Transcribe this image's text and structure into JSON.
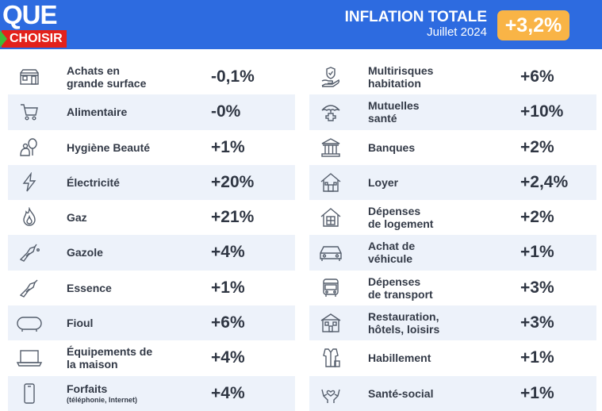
{
  "brand": {
    "line1": "QUE",
    "line2": "CHOISIR"
  },
  "header": {
    "title": "INFLATION TOTALE",
    "period": "Juillet 2024",
    "total": "+3,2%"
  },
  "colors": {
    "header_bg": "#2d6be0",
    "badge_bg": "#f9b446",
    "row_alt": "#edf2fa",
    "logo_red": "#e3211b",
    "logo_green": "#3dbb3a"
  },
  "left_items": [
    {
      "icon": "store-icon",
      "label_1": "Achats en",
      "label_2": "grande surface",
      "value": "-0,1%"
    },
    {
      "icon": "cart-icon",
      "label_1": "Alimentaire",
      "value": "-0%"
    },
    {
      "icon": "beauty-icon",
      "label_1": "Hygiène Beauté",
      "value": "+1%"
    },
    {
      "icon": "lightning-icon",
      "label_1": "Électricité",
      "value": "+20%"
    },
    {
      "icon": "flame-icon",
      "label_1": "Gaz",
      "value": "+21%"
    },
    {
      "icon": "diesel-nozzle-icon",
      "label_1": "Gazole",
      "value": "+4%"
    },
    {
      "icon": "fuel-nozzle-icon",
      "label_1": "Essence",
      "value": "+1%"
    },
    {
      "icon": "oil-tank-icon",
      "label_1": "Fioul",
      "value": "+6%"
    },
    {
      "icon": "laptop-icon",
      "label_1": "Équipements de",
      "label_2": "la maison",
      "value": "+4%"
    },
    {
      "icon": "phone-icon",
      "label_1": "Forfaits",
      "label_small": "(téléphonie, Internet)",
      "value": "+4%"
    }
  ],
  "right_items": [
    {
      "icon": "home-insurance-icon",
      "label_1": "Multirisques",
      "label_2": "habitation",
      "value": "+6%"
    },
    {
      "icon": "health-umbrella-icon",
      "label_1": "Mutuelles",
      "label_2": "santé",
      "value": "+10%"
    },
    {
      "icon": "bank-icon",
      "label_1": "Banques",
      "value": "+2%"
    },
    {
      "icon": "house-icon",
      "label_1": "Loyer",
      "value": "+2,4%"
    },
    {
      "icon": "house-calculator-icon",
      "label_1": "Dépenses",
      "label_2": "de logement",
      "value": "+2%"
    },
    {
      "icon": "car-icon",
      "label_1": "Achat de",
      "label_2": "véhicule",
      "value": "+1%"
    },
    {
      "icon": "bus-icon",
      "label_1": "Dépenses",
      "label_2": "de transport",
      "value": "+3%"
    },
    {
      "icon": "hotel-icon",
      "label_1": "Restauration,",
      "label_2": "hôtels, loisirs",
      "value": "+3%"
    },
    {
      "icon": "clothing-icon",
      "label_1": "Habillement",
      "value": "+1%"
    },
    {
      "icon": "hands-heart-icon",
      "label_1": "Santé-social",
      "value": "+1%"
    }
  ]
}
